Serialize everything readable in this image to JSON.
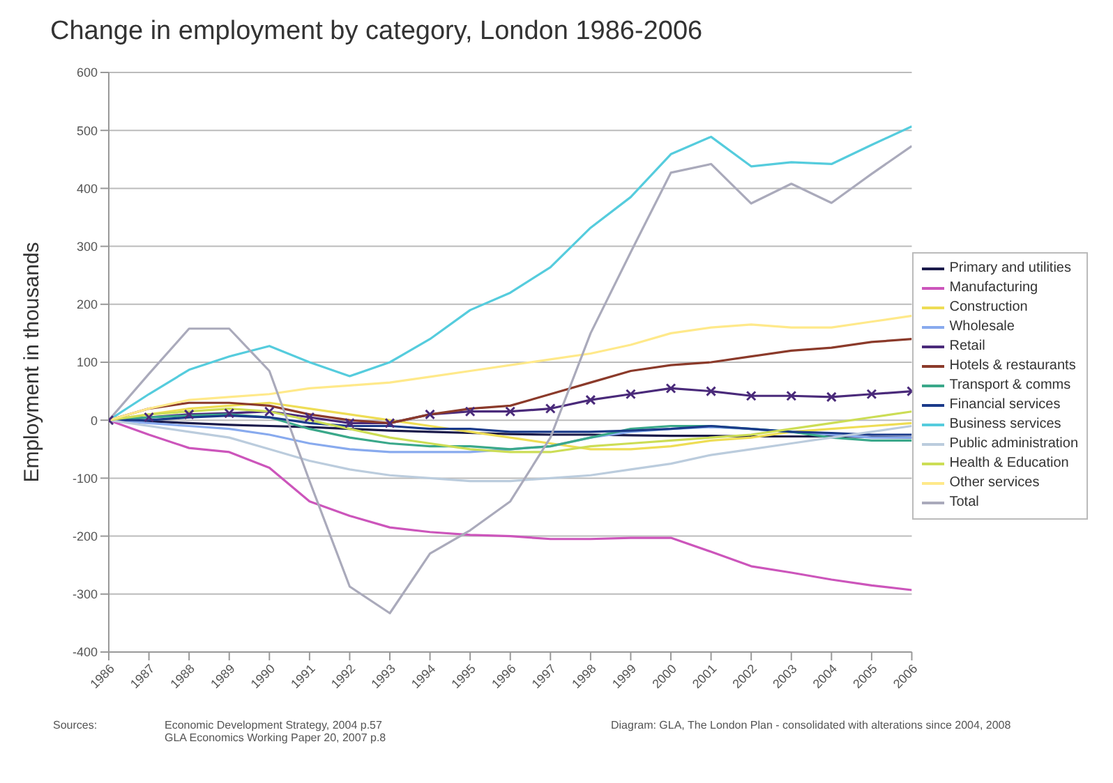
{
  "chart_data": {
    "type": "line",
    "title": "Change in employment by category, London 1986-2006",
    "ylabel": "Employment in thousands",
    "x": [
      1986,
      1987,
      1988,
      1989,
      1990,
      1991,
      1992,
      1993,
      1994,
      1995,
      1996,
      1997,
      1998,
      1999,
      2000,
      2001,
      2002,
      2003,
      2004,
      2005,
      2006
    ],
    "xlim": [
      1986,
      2006
    ],
    "xticks": [
      1986,
      1987,
      1988,
      1989,
      1990,
      1991,
      1992,
      1993,
      1994,
      1995,
      1996,
      1997,
      1998,
      1999,
      2000,
      2001,
      2002,
      2003,
      2004,
      2005,
      2006
    ],
    "ylim": [
      -400,
      600
    ],
    "yticks": [
      -400,
      -300,
      -200,
      -100,
      0,
      100,
      200,
      300,
      400,
      500,
      600
    ],
    "grid": "y",
    "legend": "right",
    "marker": "none",
    "line_style": "solid",
    "series": [
      {
        "name": "Primary and utilities",
        "color": "#1a1a4a",
        "values": [
          0,
          -2,
          -5,
          -8,
          -10,
          -12,
          -15,
          -18,
          -20,
          -22,
          -24,
          -25,
          -25,
          -26,
          -27,
          -27,
          -28,
          -28,
          -28,
          -29,
          -30
        ]
      },
      {
        "name": "Manufacturing",
        "color": "#cc55bb",
        "values": [
          0,
          -25,
          -48,
          -55,
          -82,
          -140,
          -165,
          -185,
          -193,
          -198,
          -200,
          -205,
          -205,
          -203,
          -203,
          -227,
          -252,
          -263,
          -275,
          -285,
          -293
        ]
      },
      {
        "name": "Construction",
        "color": "#eedd55",
        "values": [
          0,
          10,
          20,
          25,
          30,
          20,
          10,
          0,
          -10,
          -20,
          -30,
          -40,
          -50,
          -50,
          -45,
          -35,
          -30,
          -20,
          -15,
          -10,
          -5
        ]
      },
      {
        "name": "Wholesale",
        "color": "#88aaee",
        "values": [
          0,
          -5,
          -10,
          -15,
          -25,
          -40,
          -50,
          -55,
          -55,
          -55,
          -50,
          -45,
          -30,
          -20,
          -15,
          -12,
          -15,
          -20,
          -25,
          -30,
          -30
        ]
      },
      {
        "name": "Retail",
        "color": "#4a2a7a",
        "marker": "cross",
        "values": [
          0,
          5,
          10,
          12,
          15,
          5,
          -5,
          -5,
          10,
          15,
          15,
          20,
          35,
          45,
          55,
          50,
          42,
          42,
          40,
          45,
          50
        ]
      },
      {
        "name": "Hotels & restaurants",
        "color": "#8b3a2a",
        "values": [
          0,
          20,
          30,
          30,
          25,
          10,
          0,
          -5,
          10,
          20,
          25,
          45,
          65,
          85,
          95,
          100,
          110,
          120,
          125,
          135,
          140
        ]
      },
      {
        "name": "Transport & comms",
        "color": "#3aa88a",
        "values": [
          0,
          5,
          8,
          10,
          5,
          -15,
          -30,
          -40,
          -45,
          -45,
          -50,
          -45,
          -30,
          -15,
          -10,
          -10,
          -15,
          -20,
          -30,
          -35,
          -35
        ]
      },
      {
        "name": "Financial services",
        "color": "#1a3a8a",
        "values": [
          0,
          0,
          5,
          8,
          5,
          -5,
          -10,
          -10,
          -15,
          -15,
          -20,
          -20,
          -20,
          -18,
          -15,
          -10,
          -15,
          -20,
          -22,
          -25,
          -25
        ]
      },
      {
        "name": "Business services",
        "color": "#55ccdd",
        "values": [
          0,
          45,
          87,
          110,
          128,
          100,
          76,
          100,
          140,
          190,
          220,
          264,
          332,
          385,
          459,
          489,
          438,
          445,
          442,
          475,
          507
        ]
      },
      {
        "name": "Public administration",
        "color": "#bbccdd",
        "values": [
          0,
          -10,
          -20,
          -30,
          -50,
          -70,
          -85,
          -95,
          -100,
          -105,
          -105,
          -100,
          -95,
          -85,
          -75,
          -60,
          -50,
          -40,
          -30,
          -20,
          -10
        ]
      },
      {
        "name": "Health & Education",
        "color": "#ccdd55",
        "values": [
          0,
          10,
          15,
          20,
          15,
          0,
          -15,
          -30,
          -40,
          -50,
          -55,
          -55,
          -45,
          -40,
          -35,
          -30,
          -25,
          -15,
          -5,
          5,
          15
        ]
      },
      {
        "name": "Other services",
        "color": "#ffe98a",
        "values": [
          0,
          20,
          35,
          40,
          45,
          55,
          60,
          65,
          75,
          85,
          95,
          105,
          115,
          130,
          150,
          160,
          165,
          160,
          160,
          170,
          180
        ]
      },
      {
        "name": "Total",
        "color": "#aaaabb",
        "values": [
          0,
          80,
          158,
          158,
          85,
          -105,
          -287,
          -333,
          -230,
          -190,
          -140,
          -30,
          150,
          290,
          427,
          442,
          374,
          408,
          375,
          425,
          473
        ]
      }
    ],
    "annotations": [
      "Sources:",
      "Economic Development Strategy, 2004 p.57",
      "GLA Economics Working Paper 20, 2007 p.8",
      "Diagram: GLA, The London Plan - consolidated with alterations since 2004, 2008"
    ]
  }
}
